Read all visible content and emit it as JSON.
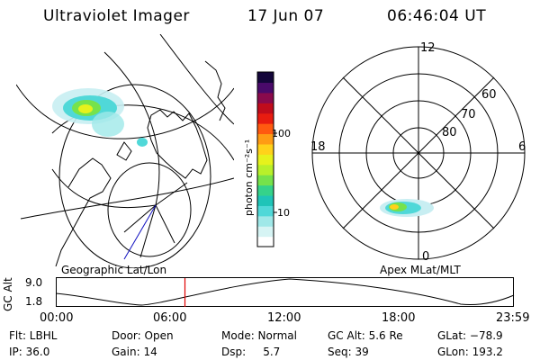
{
  "header": {
    "title": "Ultraviolet Imager",
    "date": "17 Jun 07",
    "time": "06:46:04 UT"
  },
  "colorbar": {
    "unit_label": "photon cm⁻²s⁻¹",
    "ticks": [
      "100",
      "10"
    ],
    "scale": "log",
    "colors": [
      "#ffffff",
      "#d6f4f4",
      "#9fe8e8",
      "#50d8d8",
      "#1fc4b8",
      "#35d28a",
      "#76e24b",
      "#b8f02a",
      "#e6f21c",
      "#ffd21a",
      "#ff9c14",
      "#ff5a10",
      "#e81c10",
      "#c00c1c",
      "#8a0a4c",
      "#4a0a6a",
      "#14063a"
    ]
  },
  "panels": {
    "left_caption": "Geographic Lat/Lon",
    "right_caption": "Apex MLat/MLT",
    "polar_labels": {
      "top": "12",
      "left": "18",
      "right": "6",
      "bottom": "0",
      "lat60": "60",
      "lat70": "70",
      "lat80": "80"
    }
  },
  "timeline": {
    "ylabel": "GC Alt",
    "ymax_label": "9.0",
    "ymin_label": "1.8",
    "ticks": [
      "00:00",
      "06:00",
      "12:00",
      "18:00",
      "23:59"
    ],
    "current_time_fraction": 0.282,
    "marker_color": "#e00000"
  },
  "info": {
    "flt": "Flt: LBHL",
    "ip": "IP: 36.0",
    "door": "Door: Open",
    "gain": "Gain: 14",
    "mode": "Mode: Normal",
    "dsp": "Dsp:     5.7",
    "gc_alt": "GC Alt: 5.6 Re",
    "seq": "Seq: 39",
    "glat": "GLat: −78.9",
    "glon": "GLon: 193.2"
  }
}
